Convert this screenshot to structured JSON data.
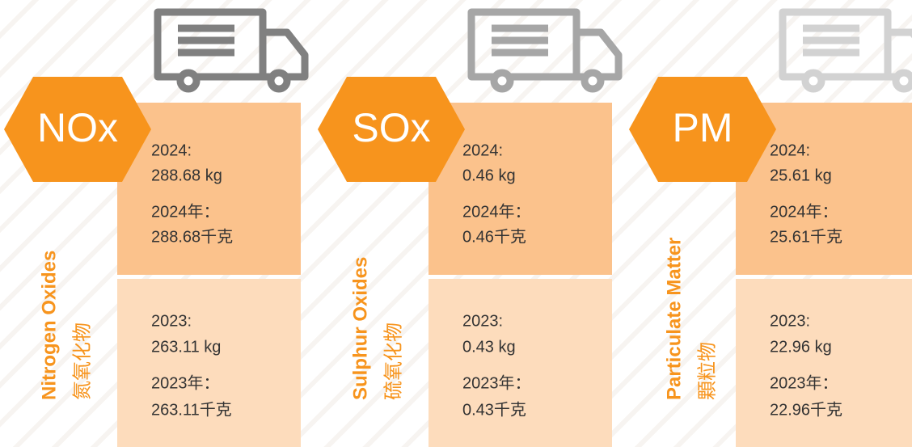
{
  "panels": [
    {
      "abbr": "NOx",
      "name_en": "Nitrogen Oxides",
      "name_zh": "氮氧化物",
      "current": [
        "2024:",
        "288.68 kg",
        "2024年：",
        "288.68千克"
      ],
      "previous": [
        "2023:",
        "263.11 kg",
        "2023年：",
        "263.11千克"
      ]
    },
    {
      "abbr": "SOx",
      "name_en": "Sulphur Oxides",
      "name_zh": "硫氧化物",
      "current": [
        "2024:",
        "0.46 kg",
        "2024年：",
        "0.46千克"
      ],
      "previous": [
        "2023:",
        "0.43 kg",
        "2023年：",
        "0.43千克"
      ]
    },
    {
      "abbr": "PM",
      "name_en": "Particulate Matter",
      "name_zh": "顆粒物",
      "current": [
        "2024:",
        "25.61 kg",
        "2024年：",
        "25.61千克"
      ],
      "previous": [
        "2023:",
        "22.96 kg",
        "2023年：",
        "22.96千克"
      ]
    }
  ]
}
